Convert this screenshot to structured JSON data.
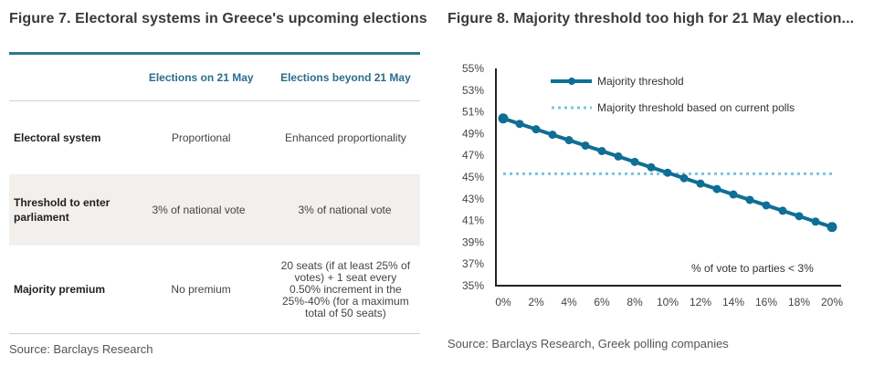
{
  "figure7": {
    "title": "Figure 7. Electoral systems in Greece's upcoming elections",
    "columns": [
      "",
      "Elections on 21 May",
      "Elections beyond 21 May"
    ],
    "rows": [
      {
        "label": "Electoral system",
        "col1": "Proportional",
        "col2": "Enhanced proportionality"
      },
      {
        "label": "Threshold to enter parliament",
        "col1": "3% of national vote",
        "col2": "3% of national vote"
      },
      {
        "label": "Majority premium",
        "col1": "No premium",
        "col2": "20 seats (if at least 25% of votes) + 1 seat every 0.50% increment in the 25%-40% (for a maximum total of 50 seats)"
      }
    ],
    "source": "Source: Barclays Research"
  },
  "figure8": {
    "title": "Figure 8. Majority threshold too high for 21 May election...",
    "source": "Source: Barclays Research, Greek polling companies"
  },
  "colors": {
    "series_line": "#0f6e96",
    "polls_line": "#7cc3de",
    "table_accent": "#2b7a8c",
    "header_text": "#2b6e8c",
    "shaded_row": "#f2efec"
  },
  "chart_data": {
    "type": "line",
    "title": "Figure 8. Majority threshold too high for 21 May election...",
    "xlabel": "% of vote to parties < 3%",
    "ylabel": "",
    "x": [
      0,
      1,
      2,
      3,
      4,
      5,
      6,
      7,
      8,
      9,
      10,
      11,
      12,
      13,
      14,
      15,
      16,
      17,
      18,
      19,
      20
    ],
    "xticks": [
      0,
      2,
      4,
      6,
      8,
      10,
      12,
      14,
      16,
      18,
      20
    ],
    "xtick_labels": [
      "0%",
      "2%",
      "4%",
      "6%",
      "8%",
      "10%",
      "12%",
      "14%",
      "16%",
      "18%",
      "20%"
    ],
    "yticks": [
      35,
      37,
      39,
      41,
      43,
      45,
      47,
      49,
      51,
      53,
      55
    ],
    "ytick_labels": [
      "35%",
      "37%",
      "39%",
      "41%",
      "43%",
      "45%",
      "47%",
      "49%",
      "51%",
      "53%",
      "55%"
    ],
    "xlim": [
      0,
      20
    ],
    "ylim": [
      35,
      55
    ],
    "grid": false,
    "legend_position": "top",
    "series": [
      {
        "name": "Majority threshold",
        "style": "solid-markers",
        "values": [
          50.4,
          49.9,
          49.4,
          48.9,
          48.4,
          47.9,
          47.4,
          46.9,
          46.4,
          45.9,
          45.4,
          44.9,
          44.4,
          43.9,
          43.4,
          42.9,
          42.4,
          41.9,
          41.4,
          40.9,
          40.4
        ]
      },
      {
        "name": "Majority threshold based on current polls",
        "style": "dotted",
        "values": [
          45.3,
          45.3,
          45.3,
          45.3,
          45.3,
          45.3,
          45.3,
          45.3,
          45.3,
          45.3,
          45.3,
          45.3,
          45.3,
          45.3,
          45.3,
          45.3,
          45.3,
          45.3,
          45.3,
          45.3,
          45.3
        ]
      }
    ]
  }
}
